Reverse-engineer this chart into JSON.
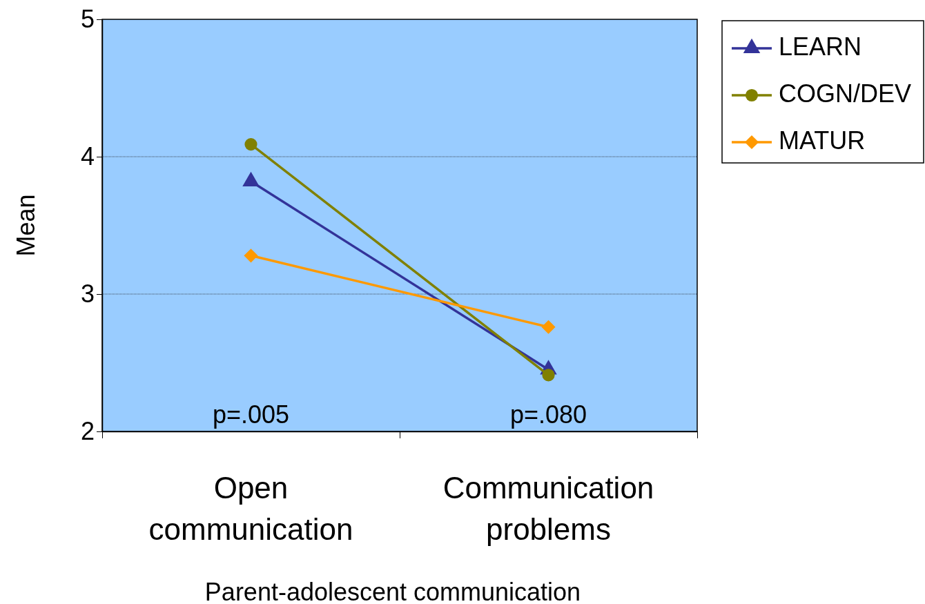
{
  "chart_data": {
    "type": "line",
    "xlabel": "Parent-adolescent communication",
    "ylabel": "Mean",
    "categories": [
      "Open communication",
      "Communication problems"
    ],
    "series": [
      {
        "name": "LEARN",
        "color": "#333399",
        "marker": "triangle",
        "values": [
          3.82,
          2.45
        ]
      },
      {
        "name": "COGN/DEV",
        "color": "#808000",
        "marker": "circle",
        "values": [
          4.09,
          2.41
        ]
      },
      {
        "name": "MATUR",
        "color": "#ff9900",
        "marker": "diamond",
        "values": [
          3.28,
          2.76
        ]
      }
    ],
    "ylim": [
      2,
      5
    ],
    "yticks": [
      2,
      3,
      4,
      5
    ],
    "grid": "y",
    "legend": "top right",
    "line_style": "solid",
    "annotations": [
      "p=.005",
      "p=.080"
    ]
  }
}
